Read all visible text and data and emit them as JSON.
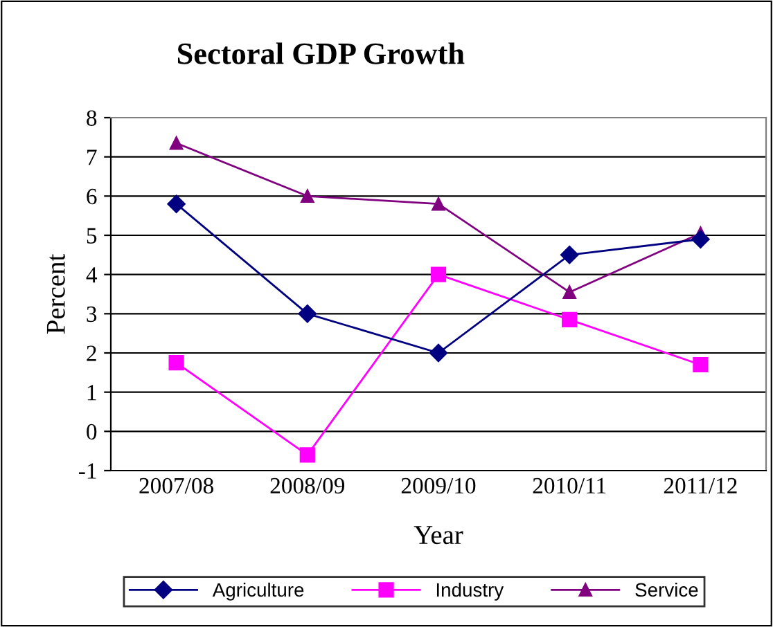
{
  "chart_data": {
    "type": "line",
    "title": "Sectoral GDP Growth",
    "xlabel": "Year",
    "ylabel": "Percent",
    "categories": [
      "2007/08",
      "2008/09",
      "2009/10",
      "2010/11",
      "2011/12"
    ],
    "series": [
      {
        "name": "Agriculture",
        "color": "#000080",
        "marker": "diamond",
        "values": [
          5.8,
          3.0,
          2.0,
          4.5,
          4.9
        ]
      },
      {
        "name": "Industry",
        "color": "#ff00ff",
        "marker": "square",
        "values": [
          1.75,
          -0.6,
          4.0,
          2.85,
          1.7
        ]
      },
      {
        "name": "Service",
        "color": "#800080",
        "marker": "triangle",
        "values": [
          7.35,
          6.0,
          5.8,
          3.55,
          5.05
        ]
      }
    ],
    "ylim": [
      -1,
      8
    ],
    "yticks": [
      -1,
      0,
      1,
      2,
      3,
      4,
      5,
      6,
      7,
      8
    ],
    "grid": "y",
    "legend": "bottom",
    "line_style": "solid"
  }
}
